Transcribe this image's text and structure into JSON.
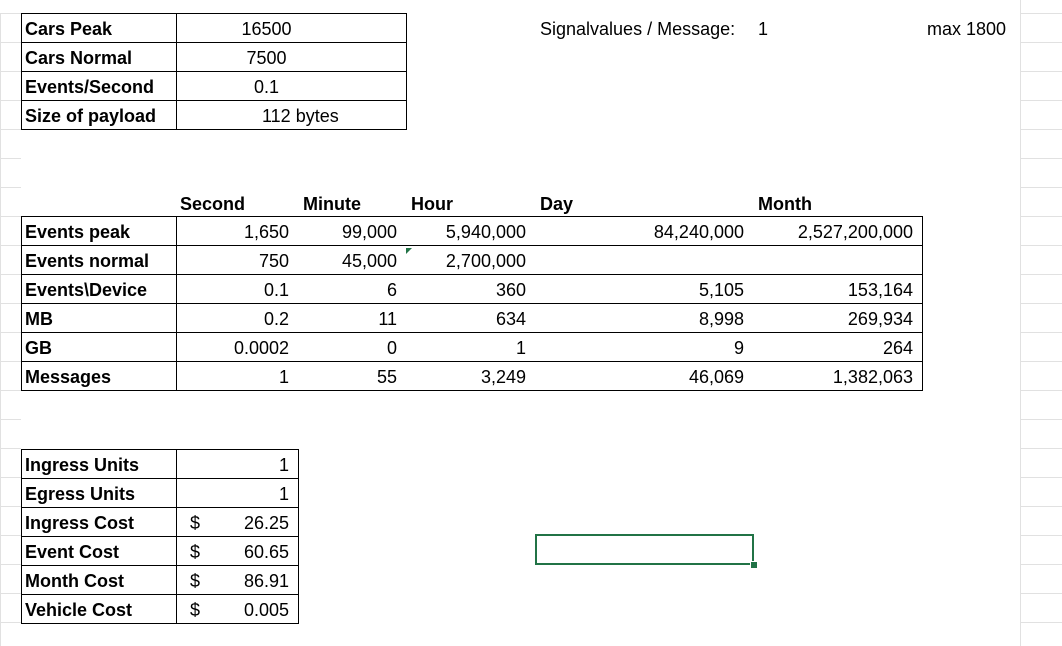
{
  "spreadsheet": {
    "inputs": [
      {
        "label": "Cars Peak",
        "value": "16500"
      },
      {
        "label": "Cars Normal",
        "value": "7500"
      },
      {
        "label": "Events/Second",
        "value": "0.1"
      },
      {
        "label": "Size of payload",
        "value": "112 bytes"
      }
    ],
    "signal": {
      "label": "Signalvalues / Message:",
      "value": "1",
      "max_note": "max 1800"
    },
    "period_headers": [
      "Second",
      "Minute",
      "Hour",
      "Day",
      "Month"
    ],
    "rows": [
      {
        "label": "Events peak",
        "values": [
          "1,650",
          "99,000",
          "5,940,000",
          "84,240,000",
          "2,527,200,000"
        ]
      },
      {
        "label": "Events normal",
        "values": [
          "750",
          "45,000",
          "2,700,000",
          "",
          ""
        ]
      },
      {
        "label": "Events\\Device",
        "values": [
          "0.1",
          "6",
          "360",
          "5,105",
          "153,164"
        ]
      },
      {
        "label": "MB",
        "values": [
          "0.2",
          "11",
          "634",
          "8,998",
          "269,934"
        ]
      },
      {
        "label": "GB",
        "values": [
          "0.0002",
          "0",
          "1",
          "9",
          "264"
        ]
      },
      {
        "label": "Messages",
        "values": [
          "1",
          "55",
          "3,249",
          "46,069",
          "1,382,063"
        ]
      }
    ],
    "costs": [
      {
        "label": "Ingress Units",
        "currency": "",
        "value": "1"
      },
      {
        "label": "Egress Units",
        "currency": "",
        "value": "1"
      },
      {
        "label": "Ingress Cost",
        "currency": "$",
        "value": "26.25"
      },
      {
        "label": "Event Cost",
        "currency": "$",
        "value": "60.65"
      },
      {
        "label": "Month Cost",
        "currency": "$",
        "value": "86.91"
      },
      {
        "label": "Vehicle Cost",
        "currency": "$",
        "value": "0.005"
      }
    ],
    "colors": {
      "selection": "#217346",
      "gridline": "#e1e1e1"
    }
  }
}
